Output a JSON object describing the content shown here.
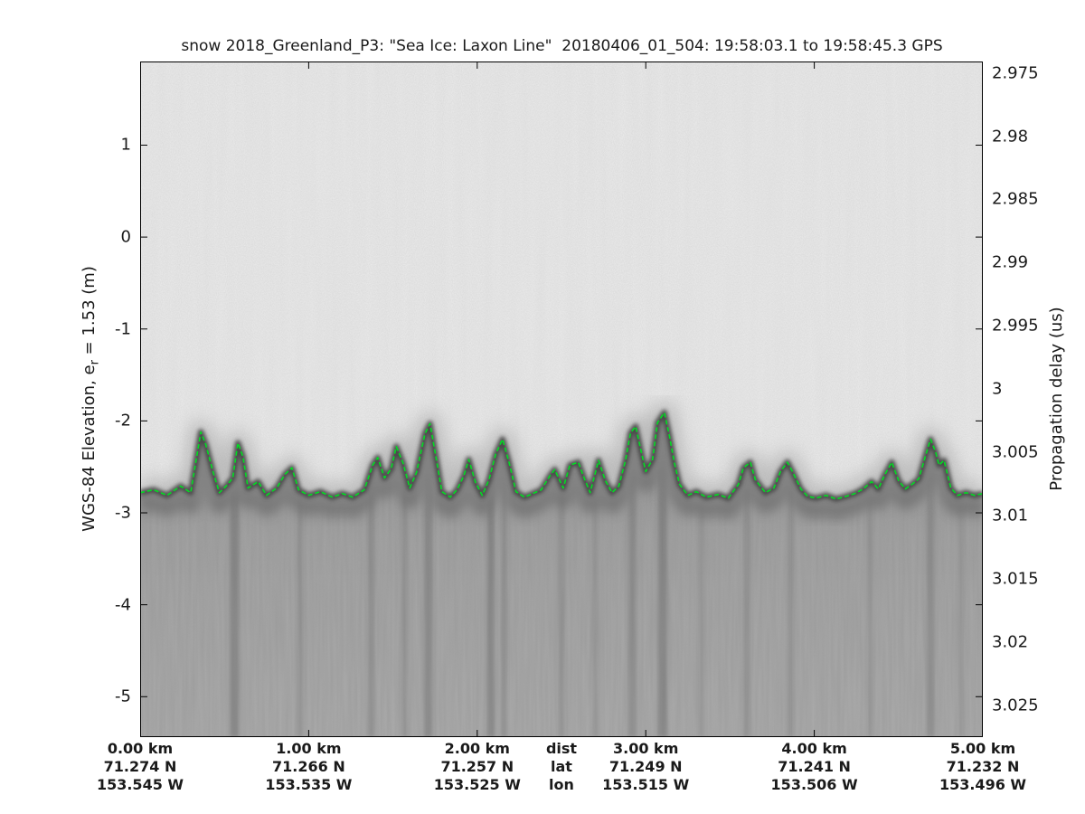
{
  "figure": {
    "kind": "radar echogram figure",
    "background": "#ffffff",
    "frame_color": "#000000",
    "text_color": "#1a1a1a"
  },
  "chart_data": {
    "type": "heatmap",
    "description": "Grayscale snow-radar echogram of sea ice with a dashed green tracked surface line; speckle noise above the surface, dark surface return band, streaky gray subsurface below.",
    "title": "snow 2018_Greenland_P3: \"Sea Ice: Laxon Line\"  20180406_01_504: 19:58:03.1 to 19:58:45.3 GPS",
    "y_left": {
      "label": "WGS-84 Elevation, e_r = 1.53 (m)",
      "label_parts": {
        "pre": "WGS-84 Elevation, e",
        "sub": "r",
        "post": " = 1.53 (m)"
      },
      "unit": "m",
      "ticks": [
        1,
        0,
        -1,
        -2,
        -3,
        -4,
        -5
      ],
      "range_top": 1.91,
      "range_bottom": -5.44
    },
    "y_right": {
      "label": "Propagation delay (us)",
      "unit": "us",
      "tick_labels": [
        "2.975",
        "2.98",
        "2.985",
        "2.99",
        "2.995",
        "3",
        "3.005",
        "3.01",
        "3.015",
        "3.02",
        "3.025"
      ],
      "tick_values": [
        2.975,
        2.98,
        2.985,
        2.99,
        2.995,
        3.0,
        3.005,
        3.01,
        3.015,
        3.02,
        3.025
      ],
      "range_top": 2.9741,
      "range_bottom": 3.0275
    },
    "x_axis": {
      "range_km": [
        0,
        5
      ],
      "row_names": [
        "dist",
        "lat",
        "lon"
      ],
      "legend_km": 2.5,
      "columns": [
        {
          "km": 0,
          "dist": "0.00 km",
          "lat": "71.274 N",
          "lon": "153.545 W"
        },
        {
          "km": 1,
          "dist": "1.00 km",
          "lat": "71.266 N",
          "lon": "153.535 W"
        },
        {
          "km": 2,
          "dist": "2.00 km",
          "lat": "71.257 N",
          "lon": "153.525 W"
        },
        {
          "km": 3,
          "dist": "3.00 km",
          "lat": "71.249 N",
          "lon": "153.515 W"
        },
        {
          "km": 4,
          "dist": "4.00 km",
          "lat": "71.241 N",
          "lon": "153.506 W"
        },
        {
          "km": 5,
          "dist": "5.00 km",
          "lat": "71.232 N",
          "lon": "153.496 W"
        }
      ]
    },
    "surface_line": {
      "name": "tracked snow surface",
      "color": "#00dd22",
      "style": "dashed",
      "points": [
        [
          0.0,
          -2.78
        ],
        [
          0.08,
          -2.75
        ],
        [
          0.16,
          -2.81
        ],
        [
          0.24,
          -2.71
        ],
        [
          0.3,
          -2.78
        ],
        [
          0.34,
          -2.34
        ],
        [
          0.36,
          -2.12
        ],
        [
          0.39,
          -2.26
        ],
        [
          0.43,
          -2.54
        ],
        [
          0.47,
          -2.78
        ],
        [
          0.51,
          -2.71
        ],
        [
          0.55,
          -2.62
        ],
        [
          0.58,
          -2.24
        ],
        [
          0.61,
          -2.39
        ],
        [
          0.64,
          -2.73
        ],
        [
          0.7,
          -2.66
        ],
        [
          0.75,
          -2.81
        ],
        [
          0.81,
          -2.73
        ],
        [
          0.86,
          -2.58
        ],
        [
          0.9,
          -2.51
        ],
        [
          0.94,
          -2.75
        ],
        [
          1.0,
          -2.81
        ],
        [
          1.07,
          -2.77
        ],
        [
          1.14,
          -2.83
        ],
        [
          1.2,
          -2.79
        ],
        [
          1.26,
          -2.83
        ],
        [
          1.33,
          -2.75
        ],
        [
          1.38,
          -2.48
        ],
        [
          1.41,
          -2.4
        ],
        [
          1.45,
          -2.62
        ],
        [
          1.49,
          -2.52
        ],
        [
          1.52,
          -2.28
        ],
        [
          1.56,
          -2.46
        ],
        [
          1.6,
          -2.73
        ],
        [
          1.64,
          -2.56
        ],
        [
          1.69,
          -2.14
        ],
        [
          1.72,
          -2.03
        ],
        [
          1.75,
          -2.34
        ],
        [
          1.79,
          -2.77
        ],
        [
          1.84,
          -2.83
        ],
        [
          1.88,
          -2.75
        ],
        [
          1.92,
          -2.6
        ],
        [
          1.95,
          -2.42
        ],
        [
          1.99,
          -2.67
        ],
        [
          2.03,
          -2.81
        ],
        [
          2.07,
          -2.64
        ],
        [
          2.11,
          -2.36
        ],
        [
          2.15,
          -2.2
        ],
        [
          2.19,
          -2.46
        ],
        [
          2.23,
          -2.77
        ],
        [
          2.28,
          -2.83
        ],
        [
          2.33,
          -2.79
        ],
        [
          2.38,
          -2.75
        ],
        [
          2.43,
          -2.6
        ],
        [
          2.46,
          -2.53
        ],
        [
          2.51,
          -2.73
        ],
        [
          2.55,
          -2.48
        ],
        [
          2.6,
          -2.45
        ],
        [
          2.63,
          -2.6
        ],
        [
          2.67,
          -2.78
        ],
        [
          2.72,
          -2.43
        ],
        [
          2.76,
          -2.65
        ],
        [
          2.8,
          -2.78
        ],
        [
          2.84,
          -2.71
        ],
        [
          2.88,
          -2.43
        ],
        [
          2.91,
          -2.13
        ],
        [
          2.94,
          -2.06
        ],
        [
          2.97,
          -2.31
        ],
        [
          3.0,
          -2.55
        ],
        [
          3.04,
          -2.42
        ],
        [
          3.07,
          -2.02
        ],
        [
          3.11,
          -1.91
        ],
        [
          3.14,
          -2.16
        ],
        [
          3.17,
          -2.46
        ],
        [
          3.2,
          -2.69
        ],
        [
          3.25,
          -2.81
        ],
        [
          3.3,
          -2.77
        ],
        [
          3.36,
          -2.83
        ],
        [
          3.43,
          -2.8
        ],
        [
          3.49,
          -2.84
        ],
        [
          3.55,
          -2.69
        ],
        [
          3.58,
          -2.51
        ],
        [
          3.62,
          -2.45
        ],
        [
          3.65,
          -2.64
        ],
        [
          3.71,
          -2.78
        ],
        [
          3.76,
          -2.73
        ],
        [
          3.8,
          -2.55
        ],
        [
          3.84,
          -2.45
        ],
        [
          3.87,
          -2.55
        ],
        [
          3.92,
          -2.74
        ],
        [
          3.96,
          -2.82
        ],
        [
          4.01,
          -2.84
        ],
        [
          4.07,
          -2.81
        ],
        [
          4.13,
          -2.85
        ],
        [
          4.19,
          -2.82
        ],
        [
          4.24,
          -2.79
        ],
        [
          4.29,
          -2.74
        ],
        [
          4.34,
          -2.66
        ],
        [
          4.38,
          -2.74
        ],
        [
          4.42,
          -2.58
        ],
        [
          4.46,
          -2.45
        ],
        [
          4.5,
          -2.65
        ],
        [
          4.54,
          -2.74
        ],
        [
          4.58,
          -2.69
        ],
        [
          4.62,
          -2.63
        ],
        [
          4.66,
          -2.38
        ],
        [
          4.69,
          -2.2
        ],
        [
          4.72,
          -2.34
        ],
        [
          4.74,
          -2.48
        ],
        [
          4.77,
          -2.43
        ],
        [
          4.81,
          -2.73
        ],
        [
          4.85,
          -2.81
        ],
        [
          4.9,
          -2.78
        ],
        [
          4.95,
          -2.81
        ],
        [
          5.0,
          -2.79
        ]
      ]
    },
    "texture": {
      "upper_background": "#eeeeee",
      "subsurface_grays": [
        "#8f8f8f",
        "#a0a0a0",
        "#a9a9a9"
      ],
      "surface_band_dark": "#454545",
      "streaks": [
        [
          0.56,
          10,
          0.3
        ],
        [
          0.95,
          6,
          0.18
        ],
        [
          1.37,
          7,
          0.22
        ],
        [
          1.57,
          6,
          0.18
        ],
        [
          1.71,
          9,
          0.28
        ],
        [
          2.08,
          8,
          0.3
        ],
        [
          2.16,
          6,
          0.22
        ],
        [
          2.5,
          7,
          0.18
        ],
        [
          2.7,
          6,
          0.15
        ],
        [
          2.92,
          9,
          0.25
        ],
        [
          3.1,
          10,
          0.3
        ],
        [
          3.33,
          6,
          0.15
        ],
        [
          3.6,
          7,
          0.2
        ],
        [
          3.86,
          6,
          0.18
        ],
        [
          4.33,
          6,
          0.15
        ],
        [
          4.69,
          8,
          0.25
        ],
        [
          4.87,
          5,
          0.15
        ]
      ]
    },
    "legend": null,
    "grid": false
  }
}
